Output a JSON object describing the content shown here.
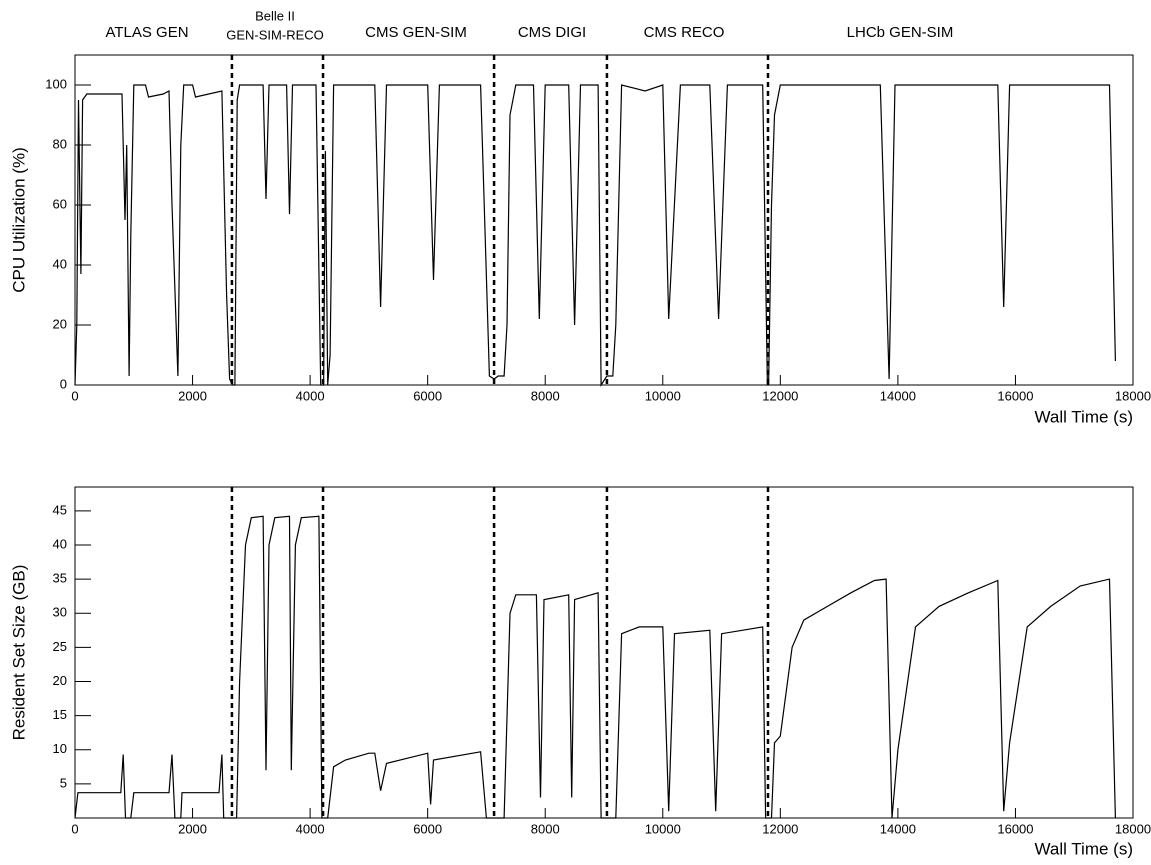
{
  "chart_data": [
    {
      "type": "line",
      "ylabel": "CPU Utilization (%)",
      "xlabel": "Wall Time (s)",
      "annotations": [
        [
          "ATLAS GEN"
        ],
        [
          "Belle II",
          "GEN-SIM-RECO"
        ],
        [
          "CMS GEN-SIM"
        ],
        [
          "CMS DIGI"
        ],
        [
          "CMS RECO"
        ],
        [
          "LHCb GEN-SIM"
        ]
      ],
      "vlines": [
        2670,
        4220,
        7130,
        9050,
        11790
      ],
      "xlim": [
        0,
        18000
      ],
      "xticks": [
        0,
        2000,
        4000,
        6000,
        8000,
        10000,
        12000,
        14000,
        16000,
        18000
      ],
      "ylim": [
        0,
        110
      ],
      "yticks": [
        0,
        20,
        40,
        60,
        80,
        100
      ],
      "x": [
        0,
        30,
        60,
        100,
        130,
        200,
        700,
        800,
        850,
        880,
        920,
        950,
        1000,
        1200,
        1250,
        1500,
        1600,
        1650,
        1750,
        1800,
        1850,
        2000,
        2050,
        2500,
        2580,
        2630,
        2680,
        2720,
        2760,
        2800,
        3200,
        3250,
        3300,
        3600,
        3650,
        3700,
        4100,
        4180,
        4230,
        4260,
        4300,
        4340,
        4400,
        5100,
        5200,
        5300,
        6000,
        6100,
        6200,
        6900,
        7050,
        7130,
        7200,
        7300,
        7350,
        7400,
        7500,
        7800,
        7900,
        8000,
        8400,
        8500,
        8600,
        8900,
        8950,
        9050,
        9150,
        9200,
        9300,
        9700,
        10000,
        10100,
        10300,
        10800,
        10950,
        11100,
        11700,
        11780,
        11800,
        11850,
        11900,
        12000,
        13700,
        13850,
        13950,
        15700,
        15800,
        15900,
        17600,
        17700
      ],
      "series": [
        {
          "color": "#000000",
          "values": [
            0,
            20,
            95,
            37,
            95,
            97,
            97,
            97,
            55,
            80,
            3,
            50,
            100,
            100,
            96,
            97,
            98,
            60,
            3,
            80,
            100,
            100,
            96,
            98,
            30,
            2,
            0,
            0,
            95,
            100,
            100,
            62,
            100,
            100,
            57,
            100,
            100,
            0,
            0,
            78,
            0,
            10,
            100,
            100,
            26,
            100,
            100,
            35,
            100,
            100,
            3,
            2,
            3,
            3,
            20,
            90,
            100,
            100,
            22,
            100,
            100,
            20,
            100,
            100,
            0,
            3,
            3,
            20,
            100,
            98,
            100,
            22,
            100,
            100,
            22,
            100,
            100,
            0,
            0,
            60,
            90,
            100,
            100,
            2,
            100,
            100,
            26,
            100,
            100,
            8
          ]
        }
      ]
    },
    {
      "type": "line",
      "ylabel": "Resident Set Size (GB)",
      "xlabel": "Wall Time (s)",
      "vlines": [
        2670,
        4220,
        7130,
        9050,
        11790
      ],
      "xlim": [
        0,
        18000
      ],
      "xticks": [
        0,
        2000,
        4000,
        6000,
        8000,
        10000,
        12000,
        14000,
        16000,
        18000
      ],
      "ylim": [
        0,
        48.5
      ],
      "yticks": [
        5,
        10,
        15,
        20,
        25,
        30,
        35,
        40,
        45
      ],
      "x": [
        0,
        50,
        780,
        820,
        860,
        950,
        1000,
        1600,
        1650,
        1700,
        1800,
        1820,
        2450,
        2500,
        2530,
        2700,
        2750,
        2800,
        2900,
        3000,
        3200,
        3250,
        3300,
        3400,
        3650,
        3680,
        3750,
        3850,
        4150,
        4200,
        4230,
        4300,
        4400,
        4600,
        5000,
        5100,
        5200,
        5300,
        6000,
        6050,
        6100,
        6900,
        7000,
        7130,
        7300,
        7400,
        7500,
        7850,
        7920,
        7980,
        8400,
        8450,
        8500,
        8900,
        8950,
        9050,
        9200,
        9300,
        9600,
        10000,
        10100,
        10200,
        10800,
        10900,
        11000,
        11700,
        11750,
        11850,
        11900,
        12000,
        12200,
        12400,
        12800,
        13200,
        13600,
        13800,
        13900,
        14000,
        14300,
        14700,
        15200,
        15700,
        15800,
        15900,
        16200,
        16600,
        17100,
        17600,
        17700
      ],
      "series": [
        {
          "color": "#000000",
          "values": [
            0,
            3.7,
            3.7,
            9.3,
            0,
            0,
            3.7,
            3.7,
            9.3,
            0,
            0,
            3.7,
            3.7,
            9.3,
            0,
            0,
            0,
            20,
            40,
            44,
            44.2,
            7,
            40,
            44,
            44.2,
            7,
            40,
            44,
            44.2,
            0,
            0,
            0,
            7.5,
            8.5,
            9.5,
            9.5,
            4,
            8,
            9.5,
            2,
            8.5,
            9.7,
            0,
            0,
            0,
            30,
            32.7,
            32.7,
            3,
            32,
            32.7,
            3,
            32,
            33,
            0,
            0,
            0,
            27,
            28,
            28,
            1,
            27,
            27.5,
            1,
            27,
            28,
            0,
            0,
            11,
            12,
            25,
            29,
            31,
            33,
            34.8,
            35,
            0,
            10,
            28,
            31,
            33,
            34.8,
            1,
            11,
            28,
            31,
            34,
            35,
            0
          ]
        }
      ]
    }
  ]
}
